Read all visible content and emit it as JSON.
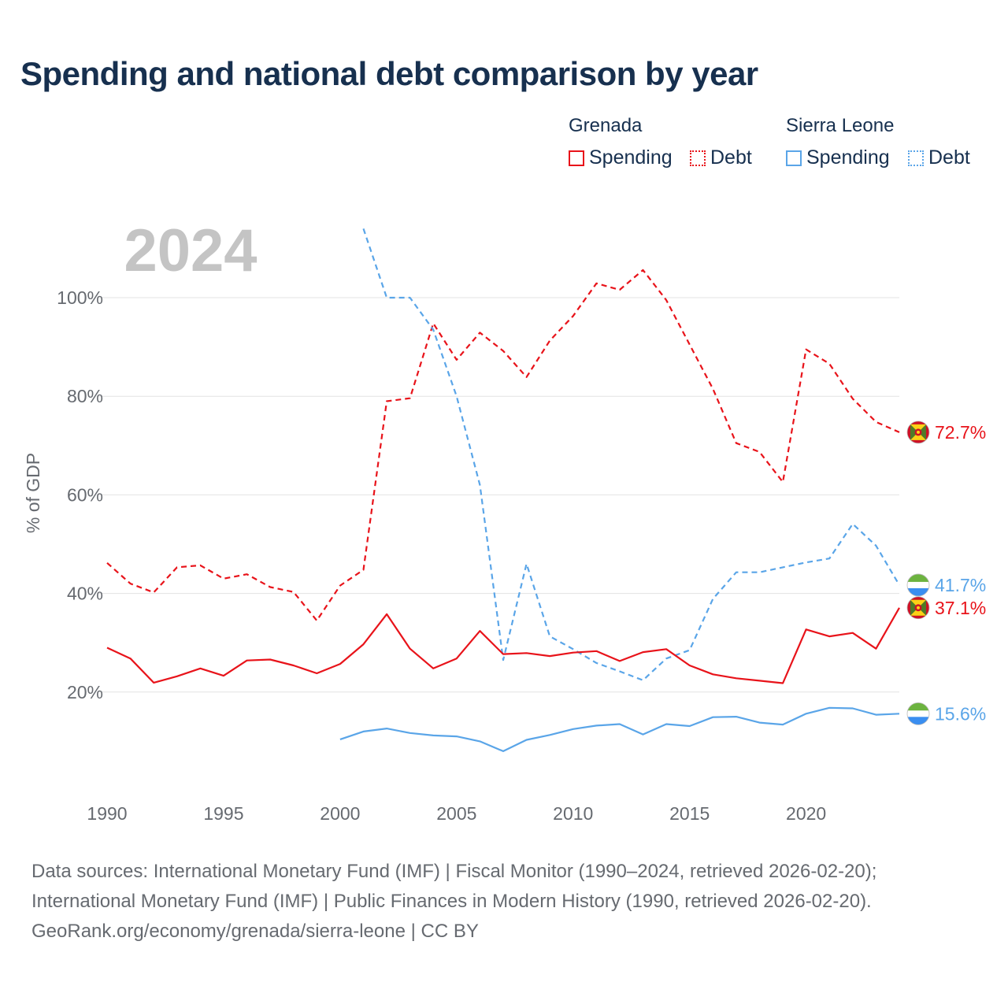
{
  "title": "Spending and national debt comparison by year",
  "year_watermark": "2024",
  "legend": {
    "groups": [
      {
        "name": "Grenada",
        "color": "#e8131a",
        "items": [
          "Spending",
          "Debt"
        ]
      },
      {
        "name": "Sierra Leone",
        "color": "#5aa5e8",
        "items": [
          "Spending",
          "Debt"
        ]
      }
    ]
  },
  "source": {
    "line1": "Data sources: International Monetary Fund (IMF) | Fiscal Monitor (1990–2024, retrieved 2026-02-20);",
    "line2": "International Monetary Fund (IMF) | Public Finances in Modern History (1990, retrieved 2026-02-20).",
    "line3": "GeoRank.org/economy/grenada/sierra-leone | CC BY"
  },
  "chart_data": {
    "type": "line",
    "title": "Spending and national debt comparison by year",
    "ylabel": "% of GDP",
    "xlabel": "",
    "ylim": [
      0,
      115
    ],
    "xlim": [
      1990,
      2024
    ],
    "x_ticks": [
      1990,
      1995,
      2000,
      2005,
      2010,
      2015,
      2020
    ],
    "y_ticks": [
      20,
      40,
      60,
      80,
      100
    ],
    "y_tick_labels": [
      "20%",
      "40%",
      "60%",
      "80%",
      "100%"
    ],
    "grid": true,
    "series": [
      {
        "name": "Grenada Debt",
        "country": "Grenada",
        "metric": "Debt",
        "color": "#e8131a",
        "dash": true,
        "end_label": "72.7%",
        "x": [
          1990,
          1991,
          1992,
          1993,
          1994,
          1995,
          1996,
          1997,
          1998,
          1999,
          2000,
          2001,
          2002,
          2003,
          2004,
          2005,
          2006,
          2007,
          2008,
          2009,
          2010,
          2011,
          2012,
          2013,
          2014,
          2015,
          2016,
          2017,
          2018,
          2019,
          2020,
          2021,
          2022,
          2023,
          2024
        ],
        "values": [
          46.2,
          42.0,
          40.2,
          45.3,
          45.7,
          43.0,
          43.9,
          41.3,
          40.3,
          34.5,
          41.6,
          44.8,
          79.0,
          79.6,
          94.8,
          87.4,
          92.9,
          89.2,
          83.9,
          91.3,
          96.3,
          102.9,
          101.6,
          105.6,
          99.5,
          90.5,
          81.5,
          70.5,
          68.7,
          62.6,
          89.5,
          86.6,
          79.5,
          74.8,
          72.7
        ]
      },
      {
        "name": "Sierra Leone Debt",
        "country": "Sierra Leone",
        "metric": "Debt",
        "color": "#5aa5e8",
        "dash": true,
        "end_label": "41.7%",
        "x": [
          2001,
          2002,
          2003,
          2004,
          2005,
          2006,
          2007,
          2008,
          2009,
          2010,
          2011,
          2012,
          2013,
          2014,
          2015,
          2016,
          2017,
          2018,
          2019,
          2020,
          2021,
          2022,
          2023,
          2024
        ],
        "values": [
          114.0,
          100.0,
          100.0,
          93.5,
          80.0,
          62.0,
          26.5,
          46.0,
          31.3,
          28.7,
          25.9,
          24.2,
          22.4,
          26.8,
          28.5,
          38.9,
          44.3,
          44.3,
          45.3,
          46.3,
          47.1,
          54.1,
          49.7,
          41.7
        ]
      },
      {
        "name": "Grenada Spending",
        "country": "Grenada",
        "metric": "Spending",
        "color": "#e8131a",
        "dash": false,
        "end_label": "37.1%",
        "x": [
          1990,
          1991,
          1992,
          1993,
          1994,
          1995,
          1996,
          1997,
          1998,
          1999,
          2000,
          2001,
          2002,
          2003,
          2004,
          2005,
          2006,
          2007,
          2008,
          2009,
          2010,
          2011,
          2012,
          2013,
          2014,
          2015,
          2016,
          2017,
          2018,
          2019,
          2020,
          2021,
          2022,
          2023,
          2024
        ],
        "values": [
          29.0,
          26.8,
          21.9,
          23.2,
          24.8,
          23.3,
          26.4,
          26.6,
          25.4,
          23.8,
          25.7,
          29.7,
          35.8,
          28.8,
          24.8,
          26.8,
          32.4,
          27.7,
          27.9,
          27.3,
          28.0,
          28.3,
          26.3,
          28.1,
          28.7,
          25.4,
          23.6,
          22.8,
          22.3,
          21.8,
          32.7,
          31.3,
          32.0,
          28.8,
          37.1
        ]
      },
      {
        "name": "Sierra Leone Spending",
        "country": "Sierra Leone",
        "metric": "Spending",
        "color": "#5aa5e8",
        "dash": false,
        "end_label": "15.6%",
        "x": [
          2000,
          2001,
          2002,
          2003,
          2004,
          2005,
          2006,
          2007,
          2008,
          2009,
          2010,
          2011,
          2012,
          2013,
          2014,
          2015,
          2016,
          2017,
          2018,
          2019,
          2020,
          2021,
          2022,
          2023,
          2024
        ],
        "values": [
          10.4,
          12.0,
          12.6,
          11.7,
          11.2,
          11.0,
          10.0,
          8.0,
          10.3,
          11.3,
          12.5,
          13.2,
          13.5,
          11.4,
          13.5,
          13.1,
          14.9,
          15.0,
          13.8,
          13.4,
          15.6,
          16.8,
          16.7,
          15.4,
          15.6
        ]
      }
    ]
  }
}
